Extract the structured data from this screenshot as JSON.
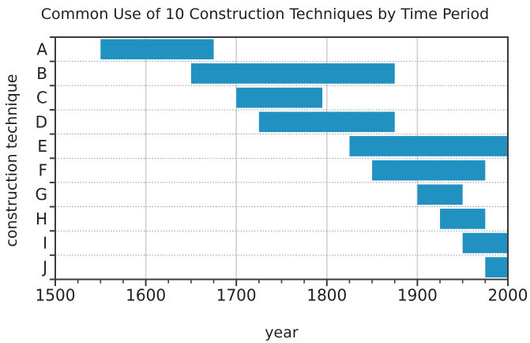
{
  "chart_data": {
    "type": "bar",
    "orientation": "horizontal",
    "title": "Common Use of 10 Construction Techniques by Time Period",
    "xlabel": "year",
    "ylabel": "construction technique",
    "categories": [
      "A",
      "B",
      "C",
      "D",
      "E",
      "F",
      "G",
      "H",
      "I",
      "J"
    ],
    "bars": [
      {
        "category": "A",
        "start": 1550,
        "end": 1675
      },
      {
        "category": "B",
        "start": 1650,
        "end": 1875
      },
      {
        "category": "C",
        "start": 1700,
        "end": 1795
      },
      {
        "category": "D",
        "start": 1725,
        "end": 1875
      },
      {
        "category": "E",
        "start": 1825,
        "end": 2000
      },
      {
        "category": "F",
        "start": 1850,
        "end": 1975
      },
      {
        "category": "G",
        "start": 1900,
        "end": 1950
      },
      {
        "category": "H",
        "start": 1925,
        "end": 1975
      },
      {
        "category": "I",
        "start": 1950,
        "end": 2000
      },
      {
        "category": "J",
        "start": 1975,
        "end": 2000
      }
    ],
    "xlim": [
      1500,
      2000
    ],
    "x_major_ticks": [
      1500,
      1600,
      1700,
      1800,
      1900,
      2000
    ],
    "x_minor_tick_step": 25,
    "grid": {
      "vertical_lines_at": [
        1600,
        1700,
        1800,
        1900
      ],
      "vertical_style": "solid",
      "horizontal_style": "dotted-at-row-boundaries"
    },
    "legend": "none",
    "colors": {
      "bar": "#2191c1",
      "frame": "#3c3c3c",
      "grid_vertical": "#d0d0d0",
      "grid_horizontal": "#9a9a9a",
      "text": "#1f1f1f",
      "background": "#ffffff"
    }
  }
}
